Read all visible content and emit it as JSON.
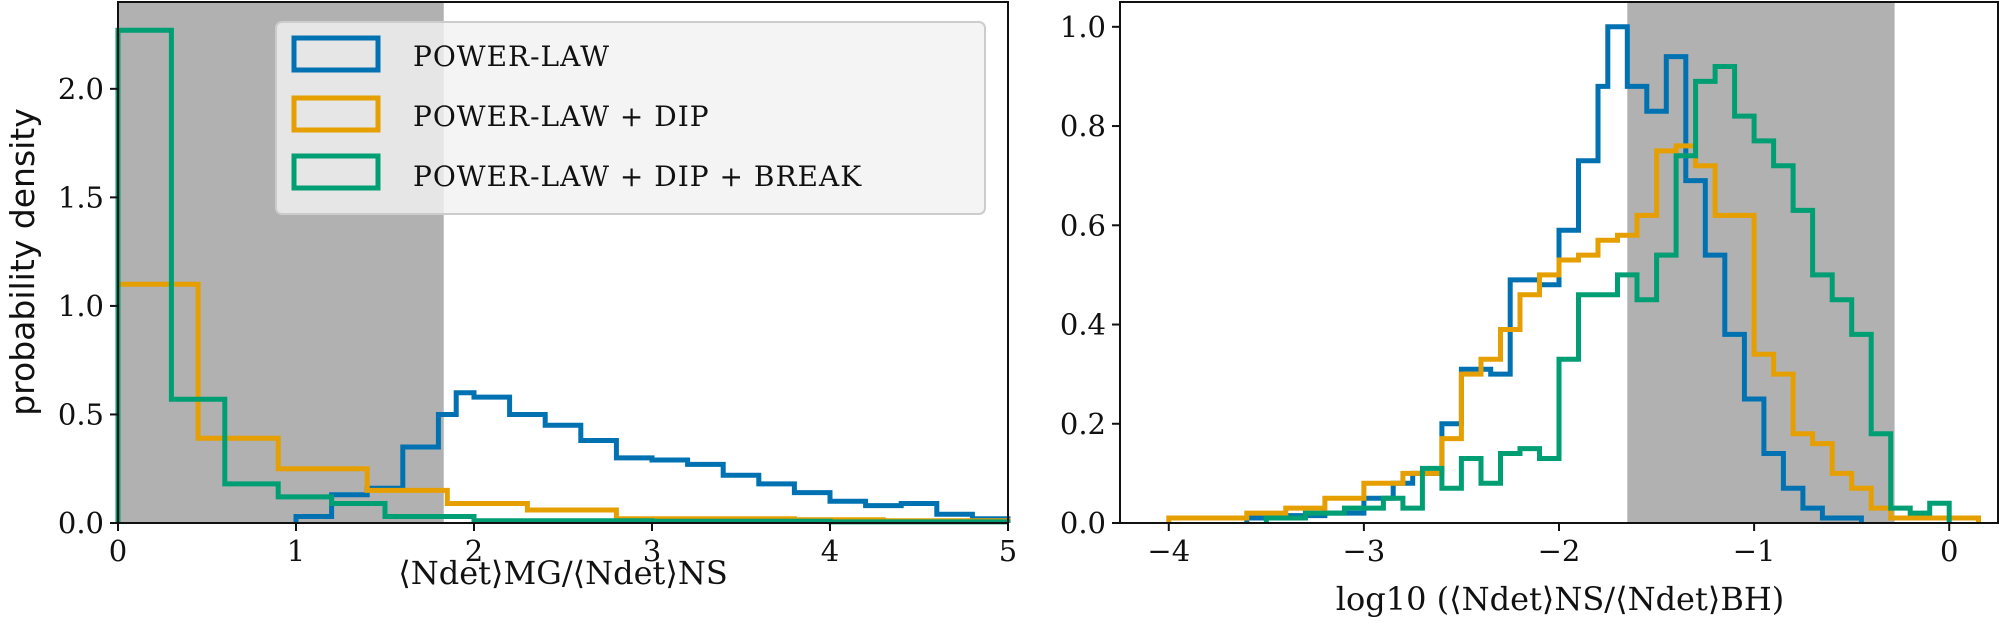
{
  "chart_data": [
    {
      "type": "histogram",
      "xlabel": "⟨Ndet⟩MG/⟨Ndet⟩NS",
      "ylabel": "probability density",
      "xlim": [
        0,
        5
      ],
      "ylim": [
        0,
        2.4
      ],
      "xticks": [
        0,
        1,
        2,
        3,
        4,
        5
      ],
      "yticks": [
        0.0,
        0.5,
        1.0,
        1.5,
        2.0
      ],
      "xtick_labels": [
        "0",
        "1",
        "2",
        "3",
        "4",
        "5"
      ],
      "ytick_labels": [
        "0.0",
        "0.5",
        "1.0",
        "1.5",
        "2.0"
      ],
      "shaded_region": [
        0,
        1.83
      ],
      "legend": [
        "POWER-LAW",
        "POWER-LAW + DIP",
        "POWER-LAW + DIP + BREAK"
      ],
      "series": [
        {
          "name": "POWER-LAW",
          "color": "#0072b2",
          "edges": [
            1.0,
            1.2,
            1.4,
            1.6,
            1.8,
            1.9,
            2.0,
            2.2,
            2.4,
            2.6,
            2.8,
            3.0,
            3.2,
            3.4,
            3.6,
            3.8,
            4.0,
            4.2,
            4.4,
            4.6,
            4.8,
            5.0
          ],
          "values": [
            0.03,
            0.13,
            0.16,
            0.35,
            0.5,
            0.6,
            0.58,
            0.5,
            0.45,
            0.38,
            0.3,
            0.29,
            0.27,
            0.22,
            0.18,
            0.14,
            0.1,
            0.08,
            0.09,
            0.04,
            0.02
          ]
        },
        {
          "name": "POWER-LAW + DIP",
          "color": "#e69f00",
          "edges": [
            0,
            0.45,
            0.9,
            1.4,
            1.85,
            2.3,
            2.8,
            3.3,
            3.8,
            4.3,
            5.0
          ],
          "values": [
            1.1,
            0.39,
            0.25,
            0.15,
            0.09,
            0.06,
            0.02,
            0.02,
            0.015,
            0.01
          ]
        },
        {
          "name": "POWER-LAW + DIP + BREAK",
          "color": "#009e73",
          "edges": [
            0,
            0.3,
            0.6,
            0.9,
            1.2,
            1.5,
            2.0,
            3.0,
            4.0,
            5.0
          ],
          "values": [
            2.27,
            0.57,
            0.18,
            0.12,
            0.09,
            0.03,
            0.01,
            0.008,
            0.005
          ]
        }
      ]
    },
    {
      "type": "histogram",
      "xlabel": "log10 (⟨Ndet⟩NS/⟨Ndet⟩BH)",
      "ylabel": "",
      "xlim": [
        -4.25,
        0.25
      ],
      "ylim": [
        0,
        1.05
      ],
      "xticks": [
        -4,
        -3,
        -2,
        -1,
        0
      ],
      "yticks": [
        0.0,
        0.2,
        0.4,
        0.6,
        0.8,
        1.0
      ],
      "xtick_labels": [
        "−4",
        "−3",
        "−2",
        "−1",
        "0"
      ],
      "ytick_labels": [
        "0.0",
        "0.2",
        "0.4",
        "0.6",
        "0.8",
        "1.0"
      ],
      "shaded_region": [
        -1.65,
        -0.28
      ],
      "series": [
        {
          "name": "POWER-LAW",
          "color": "#0072b2",
          "edges": [
            -3.6,
            -3.4,
            -3.2,
            -3.0,
            -2.85,
            -2.75,
            -2.6,
            -2.5,
            -2.35,
            -2.25,
            -2.1,
            -2.0,
            -1.9,
            -1.8,
            -1.75,
            -1.65,
            -1.55,
            -1.45,
            -1.35,
            -1.25,
            -1.15,
            -1.05,
            -0.95,
            -0.85,
            -0.75,
            -0.65,
            -0.55,
            -0.45
          ],
          "values": [
            0.01,
            0.015,
            0.02,
            0.05,
            0.08,
            0.1,
            0.2,
            0.31,
            0.3,
            0.49,
            0.48,
            0.59,
            0.73,
            0.88,
            1.0,
            0.88,
            0.83,
            0.94,
            0.69,
            0.54,
            0.38,
            0.25,
            0.14,
            0.07,
            0.03,
            0.01,
            0.01
          ]
        },
        {
          "name": "POWER-LAW + DIP",
          "color": "#e69f00",
          "edges": [
            -4.0,
            -3.6,
            -3.4,
            -3.2,
            -3.0,
            -2.8,
            -2.6,
            -2.5,
            -2.4,
            -2.3,
            -2.2,
            -2.1,
            -2.0,
            -1.9,
            -1.8,
            -1.7,
            -1.6,
            -1.5,
            -1.4,
            -1.3,
            -1.2,
            -1.1,
            -1.0,
            -0.9,
            -0.8,
            -0.7,
            -0.6,
            -0.5,
            -0.4,
            -0.3,
            0.15
          ],
          "values": [
            0.01,
            0.02,
            0.03,
            0.05,
            0.08,
            0.1,
            0.17,
            0.3,
            0.33,
            0.39,
            0.46,
            0.5,
            0.53,
            0.54,
            0.57,
            0.58,
            0.62,
            0.75,
            0.76,
            0.72,
            0.62,
            0.62,
            0.34,
            0.3,
            0.18,
            0.16,
            0.1,
            0.07,
            0.03,
            0.01
          ]
        },
        {
          "name": "POWER-LAW + DIP + BREAK",
          "color": "#009e73",
          "edges": [
            -3.5,
            -3.3,
            -3.1,
            -2.9,
            -2.8,
            -2.7,
            -2.6,
            -2.5,
            -2.4,
            -2.3,
            -2.2,
            -2.1,
            -2.0,
            -1.9,
            -1.8,
            -1.7,
            -1.6,
            -1.5,
            -1.4,
            -1.3,
            -1.2,
            -1.1,
            -1.0,
            -0.9,
            -0.8,
            -0.7,
            -0.6,
            -0.5,
            -0.4,
            -0.3,
            -0.2,
            -0.1,
            0.0
          ],
          "values": [
            0.01,
            0.02,
            0.03,
            0.05,
            0.03,
            0.11,
            0.07,
            0.13,
            0.08,
            0.14,
            0.15,
            0.13,
            0.33,
            0.46,
            0.46,
            0.5,
            0.45,
            0.54,
            0.74,
            0.89,
            0.92,
            0.82,
            0.77,
            0.72,
            0.63,
            0.5,
            0.45,
            0.38,
            0.18,
            0.03,
            0.02,
            0.04
          ]
        }
      ]
    }
  ]
}
